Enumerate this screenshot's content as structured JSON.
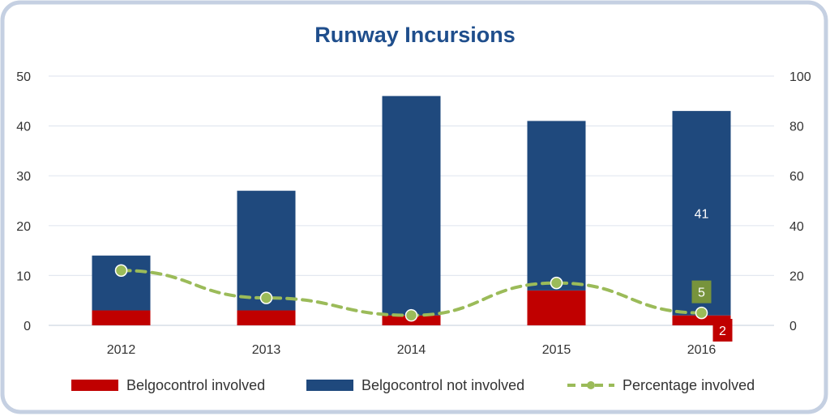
{
  "chart_data": {
    "type": "bar",
    "stacked": true,
    "title": "Runway Incursions",
    "categories": [
      "2012",
      "2013",
      "2014",
      "2015",
      "2016"
    ],
    "series": [
      {
        "name": "Belgocontrol involved",
        "type": "bar",
        "axis": "left",
        "color": "#c00000",
        "values": [
          3,
          3,
          2,
          7,
          2
        ]
      },
      {
        "name": "Belgocontrol not involved",
        "type": "bar",
        "axis": "left",
        "color": "#1f497d",
        "values": [
          11,
          24,
          44,
          34,
          41
        ]
      },
      {
        "name": "Percentage involved",
        "type": "line",
        "axis": "right",
        "style": "dashed",
        "color": "#9bbb59",
        "values": [
          22,
          11,
          4,
          17,
          5
        ]
      }
    ],
    "y_left": {
      "min": 0,
      "max": 50,
      "ticks": [
        "0",
        "10",
        "20",
        "30",
        "40",
        "50"
      ]
    },
    "y_right": {
      "min": 0,
      "max": 100,
      "ticks": [
        "0",
        "20",
        "40",
        "60",
        "80",
        "100"
      ]
    },
    "grid": true,
    "legend_position": "bottom",
    "data_labels": [
      {
        "category": "2016",
        "series": "Belgocontrol not involved",
        "text": "41",
        "box_color": ""
      },
      {
        "category": "2016",
        "series": "Percentage involved",
        "text": "5",
        "box_color": "#77933c"
      },
      {
        "category": "2016",
        "series": "Belgocontrol involved",
        "text": "2",
        "box_color": "#c00000"
      }
    ]
  }
}
